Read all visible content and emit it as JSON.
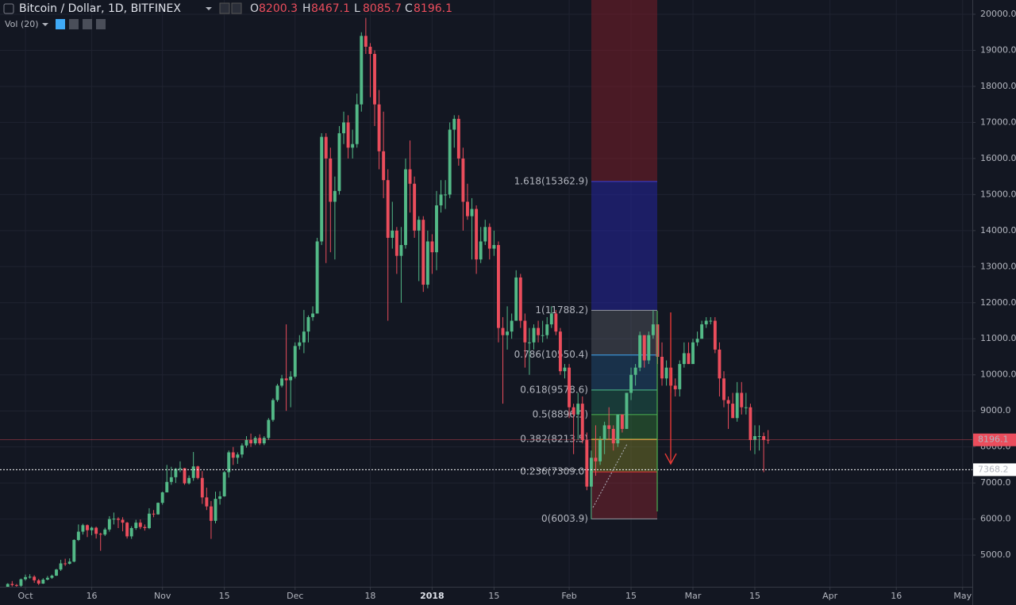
{
  "chart_data": {
    "type": "candlestick",
    "title": "Bitcoin / Dollar, 1D, BITFINEX",
    "ohlc_labels": [
      "O",
      "H",
      "L",
      "C"
    ],
    "indicator": "Vol (20)",
    "up_color": "#53b987",
    "down_color": "#eb4d5c",
    "grid": true,
    "xlim": [
      -0.75,
      219.2
    ],
    "xticks": [
      {
        "value": 5,
        "label": "Oct"
      },
      {
        "value": 20,
        "label": "16"
      },
      {
        "value": 36,
        "label": "Nov"
      },
      {
        "value": 50,
        "label": "15"
      },
      {
        "value": 66,
        "label": "Dec"
      },
      {
        "value": 83,
        "label": "18"
      },
      {
        "value": 97,
        "label": "2018",
        "bold": true
      },
      {
        "value": 111,
        "label": "15"
      },
      {
        "value": 128,
        "label": "Feb"
      },
      {
        "value": 142,
        "label": "15"
      },
      {
        "value": 156,
        "label": "Mar"
      },
      {
        "value": 170,
        "label": "15"
      },
      {
        "value": 187,
        "label": "Apr"
      },
      {
        "value": 202,
        "label": "16"
      },
      {
        "value": 217,
        "label": "May"
      }
    ],
    "ylim": [
      4122,
      20396
    ],
    "yticks": [
      {
        "value": 5000,
        "label": "5000.0"
      },
      {
        "value": 6000,
        "label": "6000.0"
      },
      {
        "value": 7000,
        "label": "7000.0"
      },
      {
        "value": 8000,
        "label": "8000.0"
      },
      {
        "value": 9000,
        "label": "9000.0"
      },
      {
        "value": 10000,
        "label": "10000.0"
      },
      {
        "value": 11000,
        "label": "11000.0"
      },
      {
        "value": 12000,
        "label": "12000.0"
      },
      {
        "value": 13000,
        "label": "13000.0"
      },
      {
        "value": 14000,
        "label": "14000.0"
      },
      {
        "value": 15000,
        "label": "15000.0"
      },
      {
        "value": 16000,
        "label": "16000.0"
      },
      {
        "value": 17000,
        "label": "17000.0"
      },
      {
        "value": 18000,
        "label": "18000.0"
      },
      {
        "value": 19000,
        "label": "19000.0"
      },
      {
        "value": 20000,
        "label": "20000.0"
      }
    ],
    "cursor_price": 7368.2,
    "fib_levels": [
      {
        "label": "0(6003.9)",
        "value": 6003.9,
        "color": "#9598a1",
        "fill": "rgba(178,40,51,0.35)"
      },
      {
        "label": "0.236(7309.0)",
        "value": 7309.0,
        "color": "#e53935",
        "fill": "rgba(160,160,40,0.35)"
      },
      {
        "label": "0.382(8213.5)",
        "value": 8213.5,
        "color": "#c9c93a",
        "fill": "rgba(60,150,60,0.35)"
      },
      {
        "label": "0.5(8896.1)",
        "value": 8896.1,
        "color": "#4caf50",
        "fill": "rgba(38,140,110,0.3)"
      },
      {
        "label": "0.618(9578.6)",
        "value": 9578.6,
        "color": "#4fbf8a",
        "fill": "rgba(40,110,170,0.3)"
      },
      {
        "label": "0.786(10550.4)",
        "value": 10550.4,
        "color": "#3fa9f5",
        "fill": "rgba(120,123,134,0.3)"
      },
      {
        "label": "1(11788.2)",
        "value": 11788.2,
        "color": "#9598a1",
        "fill": "rgba(38,38,168,0.5)"
      },
      {
        "label": "1.618(15362.9)",
        "value": 15362.9,
        "color": "#3f3fd0",
        "fill": "rgba(120,30,40,0.55)"
      }
    ],
    "candles": [
      [
        3880,
        3950,
        3850,
        3900
      ],
      [
        3900,
        4220,
        3880,
        4200
      ],
      [
        4200,
        4280,
        4130,
        4170
      ],
      [
        4170,
        4200,
        4050,
        4150
      ],
      [
        4150,
        4350,
        4120,
        4330
      ],
      [
        4330,
        4460,
        4290,
        4390
      ],
      [
        4390,
        4470,
        4350,
        4400
      ],
      [
        4400,
        4440,
        4230,
        4300
      ],
      [
        4300,
        4340,
        4170,
        4210
      ],
      [
        4210,
        4360,
        4200,
        4320
      ],
      [
        4320,
        4420,
        4300,
        4370
      ],
      [
        4370,
        4460,
        4340,
        4430
      ],
      [
        4430,
        4620,
        4420,
        4600
      ],
      [
        4600,
        4870,
        4560,
        4770
      ],
      [
        4770,
        4900,
        4700,
        4760
      ],
      [
        4760,
        4910,
        4740,
        4820
      ],
      [
        4820,
        5440,
        4800,
        5420
      ],
      [
        5420,
        5850,
        5390,
        5650
      ],
      [
        5650,
        5870,
        5570,
        5830
      ],
      [
        5830,
        5850,
        5500,
        5690
      ],
      [
        5690,
        5790,
        5550,
        5760
      ],
      [
        5760,
        5790,
        5460,
        5590
      ],
      [
        5590,
        5620,
        5120,
        5570
      ],
      [
        5570,
        5760,
        5530,
        5710
      ],
      [
        5710,
        6080,
        5650,
        6000
      ],
      [
        6000,
        6180,
        5850,
        6010
      ],
      [
        6010,
        6050,
        5750,
        5980
      ],
      [
        5980,
        6050,
        5660,
        5900
      ],
      [
        5900,
        5920,
        5460,
        5520
      ],
      [
        5520,
        5800,
        5450,
        5750
      ],
      [
        5750,
        5980,
        5700,
        5900
      ],
      [
        5900,
        5990,
        5720,
        5780
      ],
      [
        5780,
        5850,
        5680,
        5750
      ],
      [
        5750,
        6300,
        5720,
        6150
      ],
      [
        6150,
        6250,
        6050,
        6130
      ],
      [
        6130,
        6460,
        6120,
        6450
      ],
      [
        6450,
        6760,
        6400,
        6740
      ],
      [
        6740,
        7500,
        6740,
        7030
      ],
      [
        7030,
        7450,
        6950,
        7160
      ],
      [
        7160,
        7420,
        7000,
        7390
      ],
      [
        7390,
        7600,
        7300,
        7410
      ],
      [
        7410,
        7420,
        6950,
        6990
      ],
      [
        6990,
        7210,
        6960,
        7140
      ],
      [
        7140,
        7860,
        7060,
        7460
      ],
      [
        7460,
        7480,
        7100,
        7140
      ],
      [
        7140,
        7330,
        6420,
        6600
      ],
      [
        6600,
        6870,
        6250,
        6350
      ],
      [
        6350,
        6500,
        5450,
        5950
      ],
      [
        5950,
        6760,
        5880,
        6560
      ],
      [
        6560,
        6770,
        6400,
        6630
      ],
      [
        6630,
        7330,
        6620,
        7300
      ],
      [
        7300,
        7900,
        7150,
        7850
      ],
      [
        7850,
        8000,
        7500,
        7700
      ],
      [
        7700,
        7850,
        7530,
        7790
      ],
      [
        7790,
        8100,
        7700,
        8040
      ],
      [
        8040,
        8300,
        7980,
        8200
      ],
      [
        8200,
        8370,
        8000,
        8100
      ],
      [
        8100,
        8300,
        8050,
        8250
      ],
      [
        8250,
        8350,
        8050,
        8100
      ],
      [
        8100,
        8300,
        8050,
        8250
      ],
      [
        8250,
        8800,
        8200,
        8750
      ],
      [
        8750,
        9350,
        8700,
        9300
      ],
      [
        9300,
        9750,
        9250,
        9700
      ],
      [
        9700,
        10000,
        9650,
        9900
      ],
      [
        9900,
        11400,
        9000,
        9850
      ],
      [
        9850,
        10100,
        9100,
        9950
      ],
      [
        9950,
        10900,
        9900,
        10800
      ],
      [
        10800,
        11100,
        10700,
        10900
      ],
      [
        10900,
        11800,
        10600,
        11200
      ],
      [
        11200,
        11650,
        10900,
        11600
      ],
      [
        11600,
        11900,
        11500,
        11700
      ],
      [
        11700,
        13800,
        11700,
        13700
      ],
      [
        13700,
        16700,
        13600,
        16600
      ],
      [
        16600,
        16700,
        13100,
        16000
      ],
      [
        16000,
        16300,
        13400,
        14800
      ],
      [
        14800,
        15500,
        13200,
        15100
      ],
      [
        15100,
        16900,
        15000,
        16700
      ],
      [
        16700,
        17300,
        16400,
        17000
      ],
      [
        17000,
        17200,
        16000,
        16300
      ],
      [
        16300,
        16800,
        16000,
        16400
      ],
      [
        16400,
        17800,
        16300,
        17500
      ],
      [
        17500,
        19500,
        17300,
        19400
      ],
      [
        19400,
        19900,
        18900,
        19100
      ],
      [
        19100,
        19200,
        17700,
        18900
      ],
      [
        18900,
        19000,
        16900,
        17500
      ],
      [
        17500,
        17900,
        15700,
        16200
      ],
      [
        16200,
        17300,
        14900,
        15400
      ],
      [
        15400,
        15700,
        11500,
        13800
      ],
      [
        13800,
        14800,
        13500,
        14000
      ],
      [
        14000,
        14100,
        12800,
        13300
      ],
      [
        13300,
        14100,
        12000,
        13600
      ],
      [
        13600,
        16000,
        13500,
        15700
      ],
      [
        15700,
        16500,
        14500,
        15300
      ],
      [
        15300,
        15500,
        13800,
        14000
      ],
      [
        14000,
        14400,
        12600,
        14300
      ],
      [
        14300,
        14400,
        12300,
        12500
      ],
      [
        12500,
        14000,
        12400,
        13700
      ],
      [
        13700,
        13900,
        12800,
        13400
      ],
      [
        13400,
        15100,
        12900,
        14700
      ],
      [
        14700,
        15400,
        14500,
        15000
      ],
      [
        15000,
        15400,
        14600,
        15000
      ],
      [
        15000,
        17000,
        14900,
        16800
      ],
      [
        16800,
        17200,
        16300,
        17100
      ],
      [
        17100,
        17200,
        15800,
        16000
      ],
      [
        16000,
        16300,
        14000,
        14800
      ],
      [
        14800,
        15300,
        14300,
        14400
      ],
      [
        14400,
        14900,
        13200,
        14600
      ],
      [
        14600,
        14700,
        12800,
        13200
      ],
      [
        13200,
        14100,
        13100,
        13700
      ],
      [
        13700,
        14300,
        13600,
        14100
      ],
      [
        14100,
        14200,
        13200,
        13500
      ],
      [
        13500,
        14000,
        13300,
        13600
      ],
      [
        13600,
        13700,
        10900,
        11300
      ],
      [
        11300,
        11600,
        9200,
        11100
      ],
      [
        11100,
        11900,
        10700,
        11200
      ],
      [
        11200,
        11700,
        11000,
        11500
      ],
      [
        11500,
        12900,
        11500,
        12700
      ],
      [
        12700,
        12800,
        11300,
        11500
      ],
      [
        11500,
        11700,
        10200,
        10900
      ],
      [
        10900,
        11300,
        10000,
        10900
      ],
      [
        10900,
        11400,
        10700,
        11300
      ],
      [
        11300,
        11500,
        10900,
        11100
      ],
      [
        11100,
        11500,
        10900,
        11100
      ],
      [
        11100,
        11600,
        11000,
        11400
      ],
      [
        11400,
        11900,
        11300,
        11700
      ],
      [
        11700,
        11800,
        11100,
        11200
      ],
      [
        11200,
        11300,
        10000,
        10100
      ],
      [
        10100,
        10300,
        9900,
        10200
      ],
      [
        10200,
        10300,
        8800,
        9100
      ],
      [
        9100,
        9200,
        7800,
        8900
      ],
      [
        8900,
        9500,
        8200,
        9200
      ],
      [
        9200,
        9400,
        8100,
        8200
      ],
      [
        8200,
        8400,
        6800,
        6900
      ],
      [
        6900,
        7900,
        6000,
        7700
      ],
      [
        7700,
        8600,
        7200,
        7600
      ],
      [
        7600,
        8300,
        7500,
        8200
      ],
      [
        8200,
        8700,
        7800,
        8600
      ],
      [
        8600,
        9100,
        8200,
        8500
      ],
      [
        8500,
        8600,
        7900,
        8100
      ],
      [
        8100,
        8900,
        8000,
        8900
      ],
      [
        8900,
        8900,
        8400,
        8500
      ],
      [
        8500,
        9500,
        8500,
        9500
      ],
      [
        9500,
        10200,
        9300,
        10000
      ],
      [
        10000,
        10300,
        9700,
        10200
      ],
      [
        10200,
        11200,
        10100,
        11100
      ],
      [
        11100,
        11100,
        10200,
        10400
      ],
      [
        10400,
        11200,
        10300,
        11100
      ],
      [
        11100,
        11800,
        11000,
        11400
      ],
      [
        11400,
        11400,
        10300,
        10500
      ],
      [
        10500,
        10900,
        9700,
        9900
      ],
      [
        9900,
        10400,
        9700,
        10200
      ],
      [
        10200,
        10200,
        9500,
        9700
      ],
      [
        9700,
        9900,
        9400,
        9600
      ],
      [
        9600,
        10400,
        9400,
        10300
      ],
      [
        10300,
        10900,
        10200,
        10600
      ],
      [
        10600,
        10900,
        10300,
        10300
      ],
      [
        10300,
        11000,
        10300,
        10900
      ],
      [
        10900,
        11200,
        10800,
        11000
      ],
      [
        11000,
        11500,
        11000,
        11400
      ],
      [
        11400,
        11600,
        11300,
        11500
      ],
      [
        11500,
        11600,
        11400,
        11500
      ],
      [
        11500,
        11600,
        10600,
        10700
      ],
      [
        10700,
        10900,
        9400,
        9900
      ],
      [
        9900,
        10100,
        9100,
        9300
      ],
      [
        9300,
        9400,
        8500,
        9200
      ],
      [
        9200,
        9500,
        8800,
        8800
      ],
      [
        8800,
        9800,
        8700,
        9500
      ],
      [
        9500,
        9800,
        8900,
        9100
      ],
      [
        9100,
        9500,
        8900,
        9100
      ],
      [
        9100,
        9200,
        7900,
        8200
      ],
      [
        8200,
        8600,
        7800,
        8300
      ],
      [
        8300,
        8600,
        7900,
        8300
      ],
      [
        8300,
        8400,
        7300,
        8200
      ],
      [
        8200.3,
        8467.1,
        8085.7,
        8196.1
      ]
    ]
  }
}
